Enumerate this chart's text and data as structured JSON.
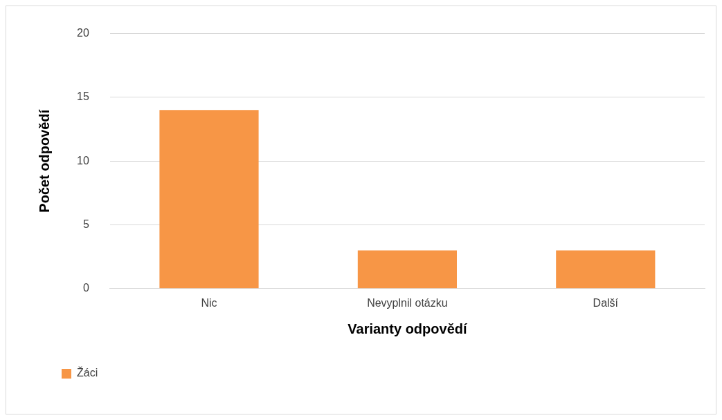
{
  "chart_data": {
    "type": "bar",
    "xlabel": "Varianty odpovědí",
    "ylabel": "Počet odpovědí",
    "categories": [
      "Nic",
      "Nevyplnil otázku",
      "Další"
    ],
    "series": [
      {
        "name": "Žáci",
        "color": "#f79646",
        "values": [
          14,
          3,
          3
        ]
      }
    ],
    "ylim": [
      0,
      20
    ],
    "yticks": [
      0,
      5,
      10,
      15,
      20
    ],
    "grid": "y",
    "legend": "bottom left"
  }
}
